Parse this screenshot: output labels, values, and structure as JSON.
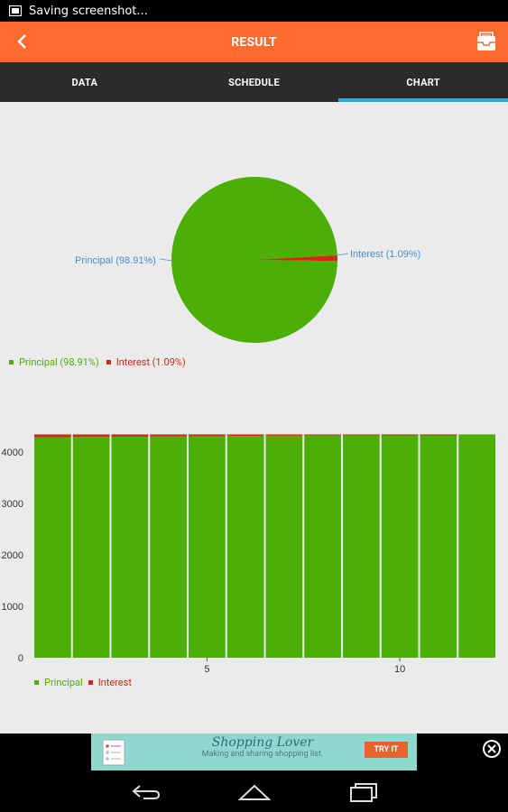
{
  "status": {
    "text": "Saving screenshot..."
  },
  "app_bar": {
    "title": "RESULT"
  },
  "tabs": [
    {
      "label": "DATA",
      "active": false
    },
    {
      "label": "SCHEDULE",
      "active": false
    },
    {
      "label": "CHART",
      "active": true
    }
  ],
  "colors": {
    "principal": "#4caf05",
    "interest": "#cc2a17",
    "accent": "#ff6a2f",
    "tab_indicator": "#33a6e0"
  },
  "pie": {
    "principal_label": "Principal (98.91%)",
    "interest_label": "Interest (1.09%)",
    "legend": {
      "principal": "Principal (98.91%)",
      "interest": "Interest (1.09%)"
    }
  },
  "bar_legend": {
    "principal": "Principal",
    "interest": "Interest"
  },
  "chart_data": [
    {
      "type": "pie",
      "categories": [
        "Principal",
        "Interest"
      ],
      "values": [
        98.91,
        1.09
      ]
    },
    {
      "type": "bar",
      "stacked": true,
      "categories": [
        "1",
        "2",
        "3",
        "4",
        "5",
        "6",
        "7",
        "8",
        "9",
        "10",
        "11",
        "12"
      ],
      "x_tick_labels": [
        "5",
        "10"
      ],
      "y_tick_labels": [
        "0",
        "1000",
        "2000",
        "3000",
        "4000"
      ],
      "ylim": [
        0,
        4400
      ],
      "series": [
        {
          "name": "Principal",
          "values": [
            4285,
            4290,
            4295,
            4300,
            4305,
            4310,
            4315,
            4320,
            4325,
            4330,
            4335,
            4339
          ]
        },
        {
          "name": "Interest",
          "values": [
            54,
            49,
            44,
            39,
            34,
            29,
            24,
            19,
            14,
            9,
            4,
            0
          ]
        }
      ],
      "legend_position": "bottom-left",
      "grid": false
    }
  ],
  "ad": {
    "title": "Shopping Lover",
    "subtitle": "Making and sharing shopping list.",
    "button": "TRY IT"
  },
  "icons": {
    "back": "chevron-left-icon",
    "action": "inbox-tray-icon",
    "status": "image-icon",
    "close": "close-circle-icon",
    "nav_back": "nav-back-icon",
    "nav_home": "nav-home-icon",
    "nav_recent": "nav-recent-icon"
  }
}
